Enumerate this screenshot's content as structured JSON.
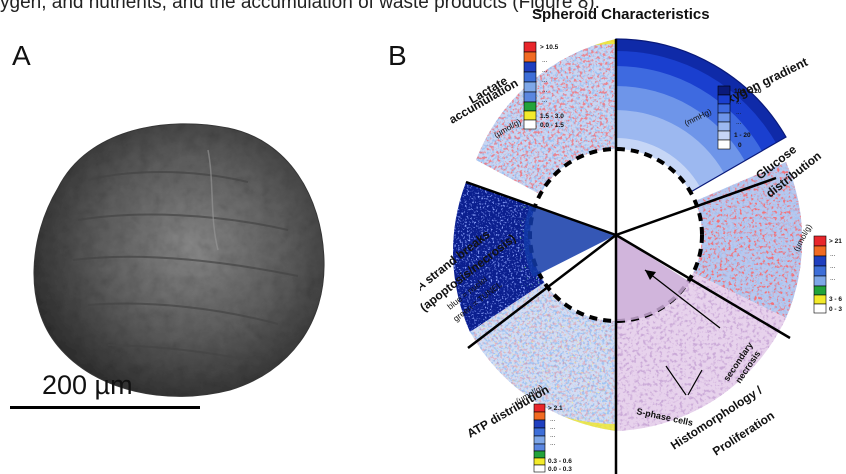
{
  "caption_line": "ygen, and nutrients, and the accumulation of waste products (Figure 8).",
  "panel_a": {
    "letter": "A",
    "scale_label": "200 µm"
  },
  "panel_b": {
    "letter": "B",
    "title": "Spheroid Characteristics",
    "sectors": {
      "oxygen": "Oxygen gradient",
      "glucose_1": "Glucose",
      "glucose_2": "distribution",
      "lactate_1": "Lactate",
      "lactate_2": "accumulation",
      "dna_1": "DNA strand breaks",
      "dna_2": "(apoptosis/necrosis)",
      "atp": "ATP distribution",
      "histo_1": "Histomorphology /",
      "histo_2": "Proliferation"
    },
    "units": {
      "mmhg": "(mmHg)",
      "lactate": "(µmol/g)",
      "glucose": "(µmol/g)",
      "atp": "(µmol/g)"
    },
    "dna_legend": [
      "blue = nuclei",
      "green = TUNEL"
    ],
    "annotations": {
      "necrosis_1": "secondary",
      "necrosis_2": "necrosis",
      "sphase": "S-phase cells"
    },
    "legend_oxygen": {
      "top": "101 - 120",
      "dots": "...",
      "low": "1 - 20",
      "zero": "0"
    },
    "legend_lactate": {
      "top": "> 10.5",
      "dots": "...",
      "mid": "1.5 - 3.0",
      "low": "0.0 - 1.5"
    },
    "legend_glucose": {
      "top": "> 21",
      "dots": "...",
      "mid": "3 - 6",
      "low": "0 - 3"
    },
    "legend_atp": {
      "top": "> 2.1",
      "dots": "...",
      "mid": "0.3 - 0.6",
      "low": "0.0 - 0.3"
    },
    "colors": {
      "red": "#e8262b",
      "orange": "#f26b22",
      "blue_dark": "#1f3fbf",
      "blue_mid": "#3d6ed8",
      "blue_light": "#7ea7e8",
      "green": "#22a33a",
      "yellow": "#f2ea2a",
      "navy": "#0a1a7a"
    }
  }
}
